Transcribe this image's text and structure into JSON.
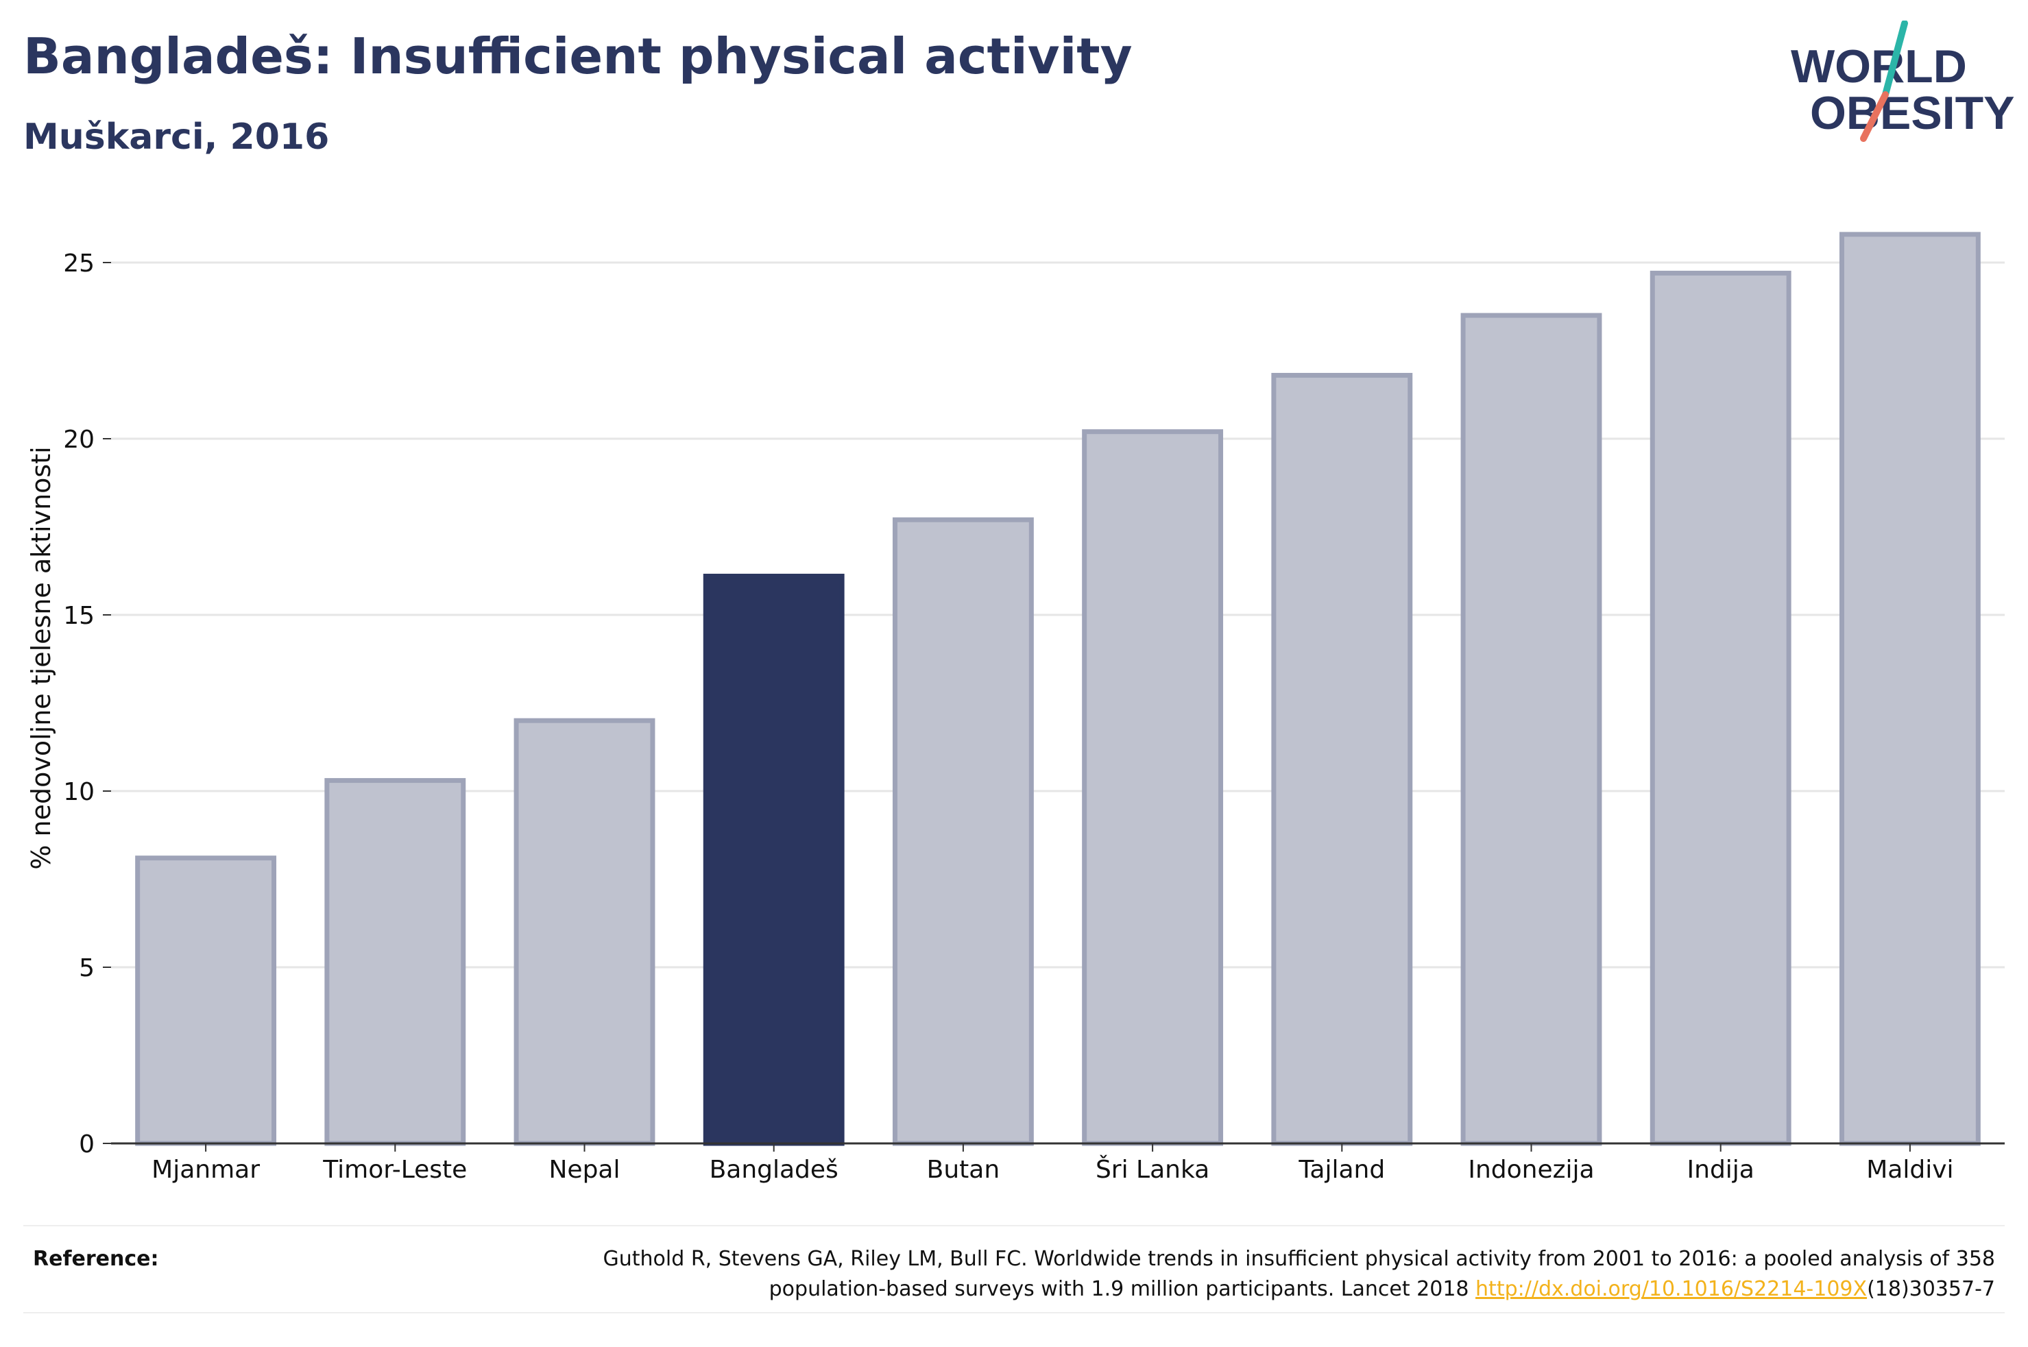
{
  "header": {
    "title": "Bangladeš: Insufficient physical activity",
    "subtitle": "Muškarci, 2016"
  },
  "logo": {
    "line1": "WORLD",
    "line2": "OBESITY",
    "colors": {
      "text": "#2b365f",
      "slash_top": "#2bb5a8",
      "slash_bottom": "#e8725e"
    }
  },
  "chart_data": {
    "type": "bar",
    "title": "Bangladeš: Insufficient physical activity",
    "subtitle": "Muškarci, 2016",
    "xlabel": "",
    "ylabel": "% nedovoljne tjelesne aktivnosti",
    "ylim": [
      0,
      27
    ],
    "yticks": [
      0,
      5,
      10,
      15,
      20,
      25
    ],
    "grid": true,
    "categories": [
      "Mjanmar",
      "Timor-Leste",
      "Nepal",
      "Bangladeš",
      "Butan",
      "Šri Lanka",
      "Tajland",
      "Indonezija",
      "Indija",
      "Maldivi"
    ],
    "values": [
      8.1,
      10.3,
      12.0,
      16.1,
      17.7,
      20.2,
      21.8,
      23.5,
      24.7,
      25.8
    ],
    "highlight": "Bangladeš",
    "colors": {
      "highlight": "#2b365f",
      "other_fill": "#bfc2cf",
      "other_border": "#9ea3b8"
    }
  },
  "footer": {
    "reference_label": "Reference:",
    "reference_text": "Guthold R, Stevens GA, Riley LM, Bull FC. Worldwide trends in insufficient physical activity from 2001 to 2016: a pooled analysis of 358 population-based surveys with 1.9 million participants. Lancet 2018 ",
    "reference_link": "http://dx.doi.org/10.1016/S2214-109X",
    "reference_tail": "(18)30357-7"
  }
}
